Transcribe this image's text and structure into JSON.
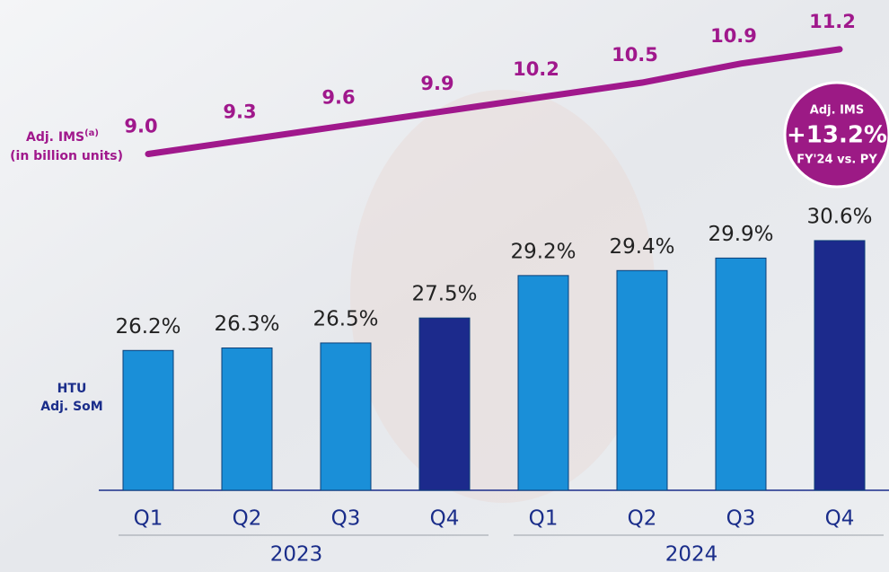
{
  "chart_data": {
    "type": "bar_line",
    "categories": [
      "Q1",
      "Q2",
      "Q3",
      "Q4",
      "Q1",
      "Q2",
      "Q3",
      "Q4"
    ],
    "groups": [
      "2023",
      "2024"
    ],
    "ylim": [
      20.6,
      32
    ],
    "y2lim": [
      8.5,
      11.5
    ],
    "series": [
      {
        "type": "bar",
        "label": [
          "HTU",
          "Adj. SoM"
        ],
        "colors": [
          "#1a8fd8",
          "#1a8fd8",
          "#1a8fd8",
          "#1c2a8c",
          "#1a8fd8",
          "#1a8fd8",
          "#1a8fd8",
          "#1c2a8c"
        ],
        "values": [
          26.2,
          26.3,
          26.5,
          27.5,
          29.2,
          29.4,
          29.9,
          30.6
        ],
        "value_labels": [
          "26.2%",
          "26.3%",
          "26.5%",
          "27.5%",
          "29.2%",
          "29.4%",
          "29.9%",
          "30.6%"
        ]
      },
      {
        "type": "line",
        "axis": "y2",
        "label": [
          "Adj. IMS",
          "(in billion units)"
        ],
        "label_note": "(a)",
        "color": "#a0188c",
        "values": [
          9.0,
          9.3,
          9.6,
          9.9,
          10.2,
          10.5,
          10.9,
          11.2
        ],
        "value_labels": [
          "9.0",
          "9.3",
          "9.6",
          "9.9",
          "10.2",
          "10.5",
          "10.9",
          "11.2"
        ]
      }
    ],
    "badge": [
      "Adj. IMS",
      "+13.2%",
      "FY'24 vs. PY"
    ]
  }
}
